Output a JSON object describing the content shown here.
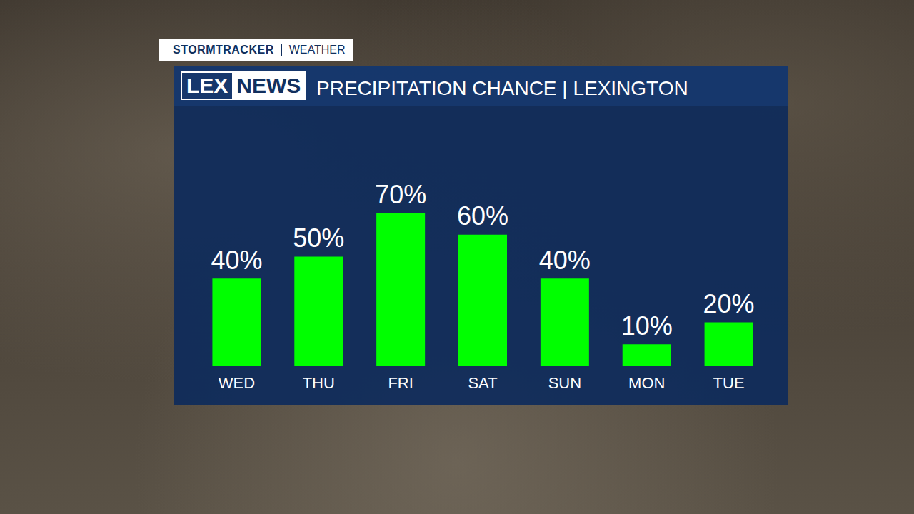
{
  "header": {
    "brand": "STORMTRACKER",
    "section": "WEATHER",
    "logo": [
      "LEX",
      "NEWS"
    ]
  },
  "chart_data": {
    "type": "bar",
    "title": "PRECIPITATION CHANCE | LEXINGTON",
    "categories": [
      "WED",
      "THU",
      "FRI",
      "SAT",
      "SUN",
      "MON",
      "TUE"
    ],
    "values": [
      40,
      50,
      70,
      60,
      40,
      10,
      20
    ],
    "value_labels": [
      "40%",
      "50%",
      "70%",
      "60%",
      "40%",
      "10%",
      "20%"
    ],
    "color": "#00ff00",
    "ylim": [
      0,
      100
    ],
    "grid": false,
    "data_labels": true,
    "tick_labels": "x"
  }
}
